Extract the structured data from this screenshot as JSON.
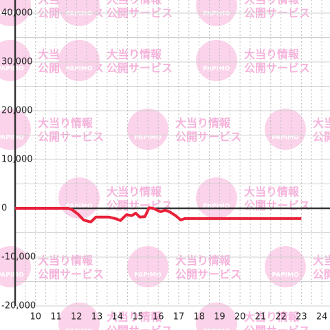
{
  "chart_data": {
    "type": "line",
    "watermark": {
      "line1": "大当り情報",
      "line2": "公開サービス",
      "logo": "PAPIMO"
    },
    "x": [
      9,
      11.6,
      11.8,
      12.1,
      12.35,
      12.7,
      12.95,
      13.6,
      13.9,
      14.15,
      14.45,
      14.7,
      14.9,
      15.1,
      15.35,
      15.55,
      15.75,
      15.9,
      16.1,
      16.35,
      16.55,
      16.85,
      17.1,
      17.3,
      23.0
    ],
    "series": [
      {
        "color": "#e8203a",
        "values": [
          0,
          0,
          -300,
          -1300,
          -2400,
          -2800,
          -1800,
          -1800,
          -2100,
          -2500,
          -1300,
          -1500,
          -1000,
          -1800,
          -1700,
          100,
          0,
          -300,
          -700,
          -400,
          -700,
          -1500,
          -2400,
          -2100,
          -2100
        ]
      }
    ],
    "xlim": [
      9,
      24.4
    ],
    "xticks": [
      10,
      11,
      12,
      13,
      14,
      15,
      16,
      17,
      18,
      19,
      20,
      21,
      22,
      23,
      24
    ],
    "ylim": [
      -20000,
      40000
    ],
    "yticks": [
      {
        "value": -20000,
        "label": "-20,000"
      },
      {
        "value": -10000,
        "label": "-10,000"
      },
      0,
      {
        "value": 10000,
        "label": "10,000"
      },
      {
        "value": 20000,
        "label": "20,000"
      },
      {
        "value": 30000,
        "label": "30,000"
      },
      {
        "value": 40000,
        "label": "40,000"
      }
    ],
    "grid": true
  }
}
